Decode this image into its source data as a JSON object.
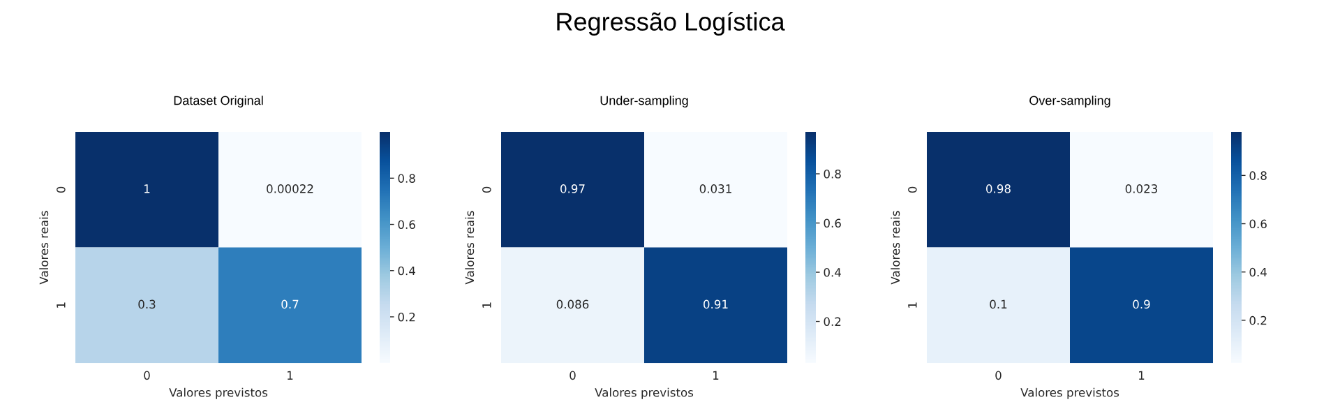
{
  "chart_data": [
    {
      "type": "heatmap",
      "title": "Dataset Original",
      "xlabel": "Valores previstos",
      "ylabel": "Valores reais",
      "categories": [
        "0",
        "1"
      ],
      "y_categories": [
        "0",
        "1"
      ],
      "cells": [
        [
          1,
          0.00022
        ],
        [
          0.3,
          0.7
        ]
      ],
      "clim": [
        0.00022,
        1
      ],
      "cticks": [
        0.2,
        0.4,
        0.6,
        0.8
      ],
      "data_labels": true,
      "annotations": [
        "Regressão Logística"
      ]
    },
    {
      "type": "heatmap",
      "title": "Under-sampling",
      "xlabel": "Valores previstos",
      "ylabel": "Valores reais",
      "categories": [
        "0",
        "1"
      ],
      "y_categories": [
        "0",
        "1"
      ],
      "cells": [
        [
          0.97,
          0.031
        ],
        [
          0.086,
          0.91
        ]
      ],
      "clim": [
        0.031,
        0.97
      ],
      "cticks": [
        0.2,
        0.4,
        0.6,
        0.8
      ],
      "data_labels": true
    },
    {
      "type": "heatmap",
      "title": "Over-sampling",
      "xlabel": "Valores previstos",
      "ylabel": "Valores reais",
      "categories": [
        "0",
        "1"
      ],
      "y_categories": [
        "0",
        "1"
      ],
      "cells": [
        [
          0.98,
          0.023
        ],
        [
          0.1,
          0.9
        ]
      ],
      "clim": [
        0.023,
        0.98
      ],
      "cticks": [
        0.2,
        0.4,
        0.6,
        0.8
      ],
      "data_labels": true
    }
  ]
}
